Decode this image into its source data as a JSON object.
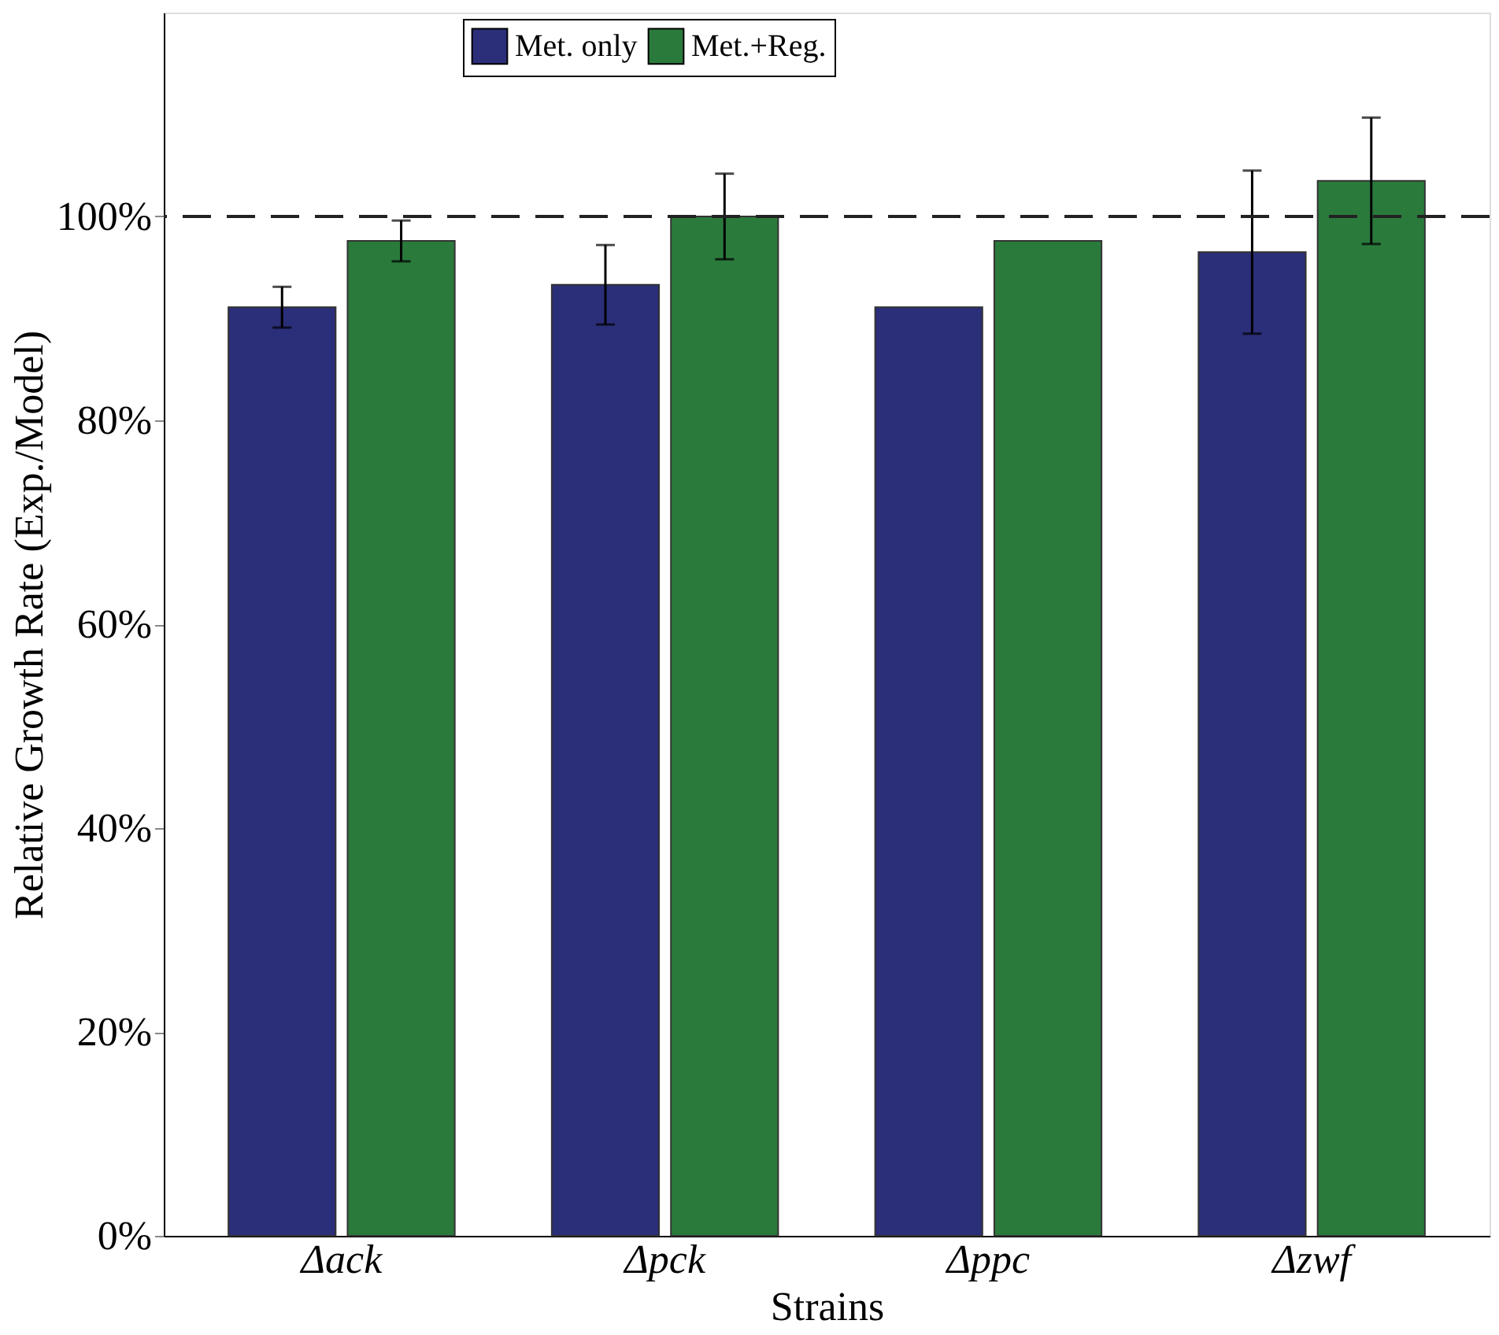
{
  "chart_data": {
    "type": "bar",
    "xlabel": "Strains",
    "ylabel": "Relative Growth Rate (Exp./Model)",
    "categories": [
      "Δack",
      "Δpck",
      "Δppc",
      "Δzwf"
    ],
    "series": [
      {
        "name": "Met. only",
        "color": "#2b2e78",
        "values": [
          91.1,
          93.3,
          91.1,
          96.5
        ],
        "errors": [
          2.0,
          3.9,
          null,
          8.0
        ]
      },
      {
        "name": "Met.+Reg.",
        "color": "#2a7a3c",
        "values": [
          97.6,
          100.0,
          97.6,
          103.5
        ],
        "errors": [
          2.0,
          4.2,
          null,
          6.2
        ]
      }
    ],
    "ylim": [
      0,
      120
    ],
    "yticks": [
      {
        "value": 0,
        "label": "0%"
      },
      {
        "value": 20,
        "label": "20%"
      },
      {
        "value": 40,
        "label": "40%"
      },
      {
        "value": 60,
        "label": "60%"
      },
      {
        "value": 80,
        "label": "80%"
      },
      {
        "value": 100,
        "label": "100%"
      }
    ],
    "ref_lines": [
      {
        "axis": "y",
        "value": 100,
        "label": null,
        "color": "#222222",
        "line_style": "dashed"
      }
    ],
    "legend": "top",
    "grid": false
  }
}
